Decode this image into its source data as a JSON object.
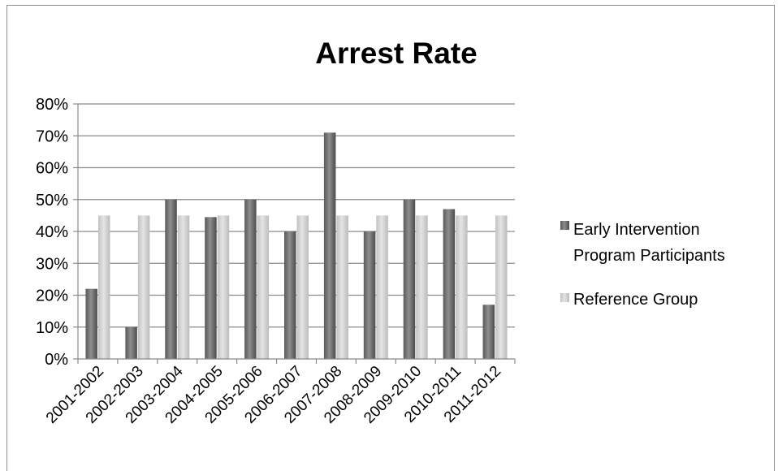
{
  "chart_data": {
    "type": "bar",
    "title": "Arrest Rate",
    "categories": [
      "2001-2002",
      "2002-2003",
      "2003-2004",
      "2004-2005",
      "2005-2006",
      "2006-2007",
      "2007-2008",
      "2008-2009",
      "2009-2010",
      "2010-2011",
      "2011-2012"
    ],
    "series": [
      {
        "name": "Early Intervention Program Participants",
        "values": [
          22,
          10,
          50,
          44.5,
          50,
          40,
          71,
          40,
          50,
          47,
          17
        ],
        "color": "#6e6e6e"
      },
      {
        "name": "Reference Group",
        "values": [
          45,
          45,
          45,
          45,
          45,
          45,
          45,
          45,
          45,
          45,
          45
        ],
        "color": "#d2d2d2"
      }
    ],
    "ylim": [
      0,
      80
    ],
    "yticks": [
      "0%",
      "10%",
      "20%",
      "30%",
      "40%",
      "50%",
      "60%",
      "70%",
      "80%"
    ],
    "grid": true,
    "legend_position": "right"
  },
  "legend": {
    "series1_line1": "Early Intervention",
    "series1_line2": "Program Participants",
    "series2": "Reference Group"
  }
}
